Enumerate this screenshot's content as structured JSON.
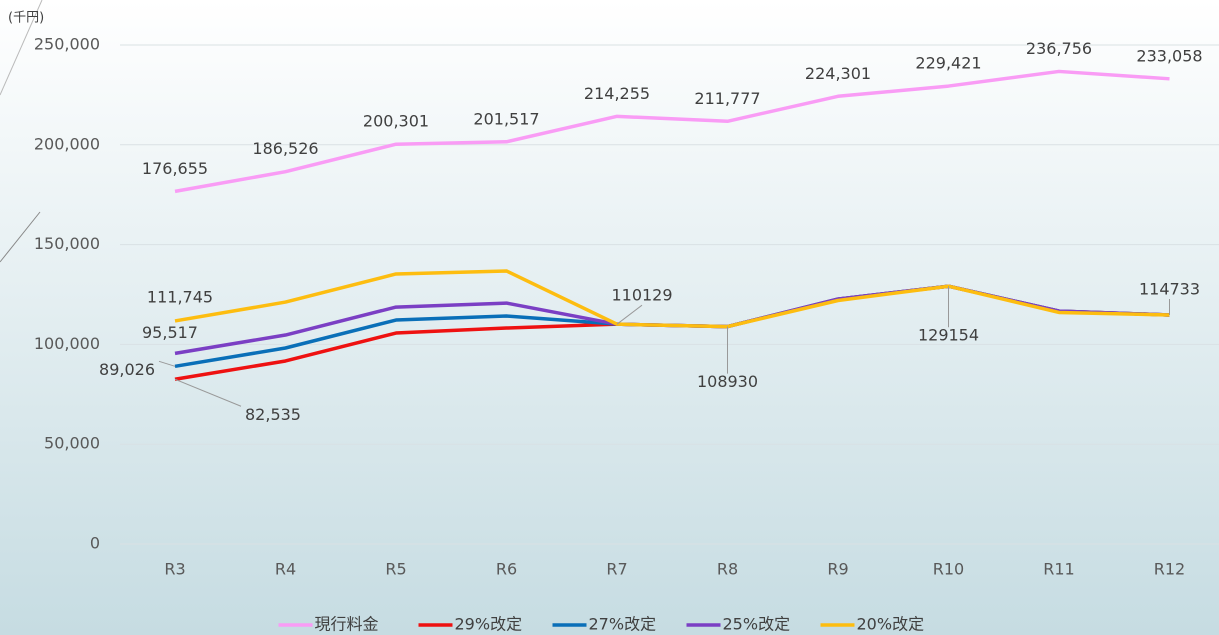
{
  "chart_data": {
    "type": "line",
    "y_axis_label": "(千円)",
    "categories": [
      "R3",
      "R4",
      "R5",
      "R6",
      "R7",
      "R8",
      "R9",
      "R10",
      "R11",
      "R12"
    ],
    "ylim": [
      0,
      250000
    ],
    "yticks": [
      0,
      {
        "value": 50000,
        "label": "50,000"
      },
      {
        "value": 100000,
        "label": "100,000"
      },
      {
        "value": 150000,
        "label": "150,000"
      },
      {
        "value": 200000,
        "label": "200,000"
      },
      {
        "value": 250000,
        "label": "250,000"
      }
    ],
    "grid": true,
    "legend": "bottom",
    "series": [
      {
        "name": "現行料金",
        "color": "#f99cf5",
        "values": [
          176655,
          186526,
          200301,
          201517,
          214255,
          211777,
          224301,
          229421,
          236756,
          233058
        ],
        "value_labels": [
          "176,655",
          "186,526",
          "200,301",
          "201,517",
          "214,255",
          "211,777",
          "224,301",
          "229,421",
          "236,756",
          "233,058"
        ]
      },
      {
        "name": "29%改定",
        "color": "#ee1111",
        "values": [
          82535,
          91700,
          105700,
          108200,
          110129,
          108930,
          122700,
          129154,
          116700,
          114733
        ],
        "value_labels": [
          "82,535",
          null,
          null,
          null,
          null,
          null,
          null,
          null,
          null,
          null
        ]
      },
      {
        "name": "27%改定",
        "color": "#0a6fb8",
        "values": [
          89026,
          98200,
          112200,
          114200,
          110129,
          108930,
          122700,
          129154,
          116700,
          114733
        ],
        "value_labels": [
          "89,026",
          null,
          null,
          null,
          null,
          null,
          null,
          null,
          null,
          null
        ]
      },
      {
        "name": "25%改定",
        "color": "#7b3fc4",
        "values": [
          95517,
          104700,
          118700,
          120700,
          110129,
          108930,
          122700,
          129154,
          116700,
          114733
        ],
        "value_labels": [
          "95,517",
          null,
          null,
          null,
          null,
          null,
          null,
          null,
          null,
          null
        ]
      },
      {
        "name": "20%改定",
        "color": "#fdbd10",
        "values": [
          111745,
          121200,
          135300,
          136800,
          110129,
          108930,
          122000,
          129154,
          116000,
          114733
        ],
        "value_labels": [
          "111,745",
          null,
          null,
          null,
          "110129",
          "108930",
          null,
          "129154",
          null,
          "114733"
        ]
      }
    ]
  }
}
